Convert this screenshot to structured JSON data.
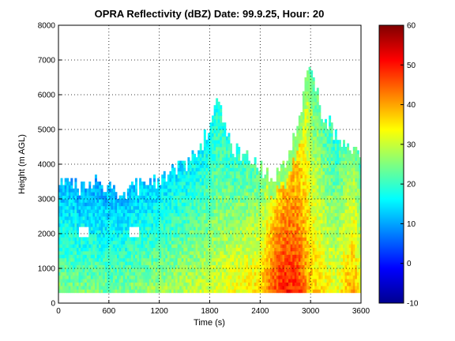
{
  "chart_data": {
    "type": "heatmap",
    "title": "OPRA Reflectivity (dBZ)  Date: 99.9.25, Hour: 20",
    "xlabel": "Time (s)",
    "ylabel": "Height (m AGL)",
    "xlim": [
      0,
      3600
    ],
    "ylim": [
      0,
      8000
    ],
    "xticks": [
      0,
      600,
      1200,
      1800,
      2400,
      3000,
      3600
    ],
    "yticks": [
      0,
      1000,
      2000,
      3000,
      4000,
      5000,
      6000,
      7000,
      8000
    ],
    "grid": true,
    "colormap": "jet",
    "colorbar": {
      "range": [
        -10,
        60
      ],
      "ticks": [
        -10,
        0,
        10,
        20,
        30,
        40,
        50,
        60
      ]
    },
    "column_echo_top_m": [
      [
        0,
        3300
      ],
      [
        150,
        3400
      ],
      [
        300,
        3200
      ],
      [
        450,
        3500
      ],
      [
        600,
        3300
      ],
      [
        750,
        3100
      ],
      [
        900,
        3300
      ],
      [
        1050,
        3400
      ],
      [
        1200,
        3500
      ],
      [
        1350,
        3700
      ],
      [
        1500,
        3900
      ],
      [
        1650,
        4200
      ],
      [
        1800,
        5000
      ],
      [
        1900,
        5900
      ],
      [
        2000,
        5000
      ],
      [
        2100,
        4300
      ],
      [
        2250,
        4200
      ],
      [
        2400,
        3900
      ],
      [
        2550,
        3500
      ],
      [
        2700,
        3900
      ],
      [
        2800,
        4600
      ],
      [
        2900,
        5500
      ],
      [
        2950,
        6900
      ],
      [
        3050,
        6200
      ],
      [
        3150,
        5400
      ],
      [
        3300,
        4800
      ],
      [
        3450,
        4600
      ],
      [
        3550,
        4300
      ],
      [
        3600,
        4000
      ]
    ],
    "echo_base_m": 300,
    "max_reflectivity_dbz": [
      [
        0,
        25
      ],
      [
        600,
        24
      ],
      [
        1200,
        27
      ],
      [
        1800,
        30
      ],
      [
        2400,
        36
      ],
      [
        2550,
        46
      ],
      [
        2700,
        50
      ],
      [
        2850,
        48
      ],
      [
        3000,
        38
      ],
      [
        3300,
        32
      ],
      [
        3500,
        40
      ],
      [
        3600,
        34
      ]
    ],
    "gaps": [
      {
        "x": [
          250,
          360
        ],
        "y": [
          1850,
          2150
        ]
      },
      {
        "x": [
          850,
          960
        ],
        "y": [
          1850,
          2150
        ]
      }
    ]
  }
}
